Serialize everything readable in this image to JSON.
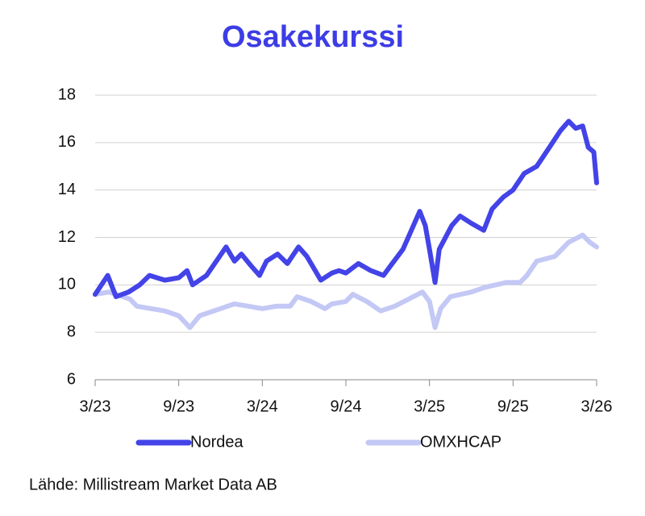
{
  "chart_data": {
    "type": "line",
    "title": "Osakekurssi",
    "source": "Lähde: Millistream Market Data AB",
    "xlim": [
      0,
      36
    ],
    "xticks": [
      {
        "value": 0,
        "label": "3/23"
      },
      {
        "value": 6,
        "label": "9/23"
      },
      {
        "value": 12,
        "label": "3/24"
      },
      {
        "value": 18,
        "label": "9/24"
      },
      {
        "value": 24,
        "label": "3/25"
      },
      {
        "value": 30,
        "label": "9/25"
      },
      {
        "value": 36,
        "label": "3/26"
      }
    ],
    "ylim": [
      6,
      18
    ],
    "yticks": [
      6,
      8,
      10,
      12,
      14,
      16,
      18
    ],
    "grid": true,
    "series": [
      {
        "name": "Nordea",
        "color": "#4343e8",
        "x": [
          0,
          0.9,
          1.5,
          2.4,
          3.2,
          3.9,
          5,
          6,
          6.6,
          7,
          8,
          9.4,
          10,
          10.5,
          11.2,
          11.8,
          12.3,
          13.1,
          13.8,
          14.6,
          15.2,
          16.2,
          17,
          17.5,
          18,
          18.9,
          19.8,
          20.7,
          21.2,
          22.1,
          22.7,
          23.3,
          23.7,
          24,
          24.4,
          24.7,
          25.6,
          26.2,
          27,
          27.9,
          28.5,
          29.3,
          30,
          30.8,
          31.7,
          32.5,
          33.4,
          34,
          34.5,
          35,
          35.4,
          35.8,
          36
        ],
        "values": [
          9.6,
          10.4,
          9.5,
          9.7,
          10.0,
          10.4,
          10.2,
          10.3,
          10.6,
          10.0,
          10.4,
          11.6,
          11.0,
          11.3,
          10.8,
          10.4,
          11.0,
          11.3,
          10.9,
          11.6,
          11.2,
          10.2,
          10.5,
          10.6,
          10.5,
          10.9,
          10.6,
          10.4,
          10.8,
          11.5,
          12.3,
          13.1,
          12.5,
          11.5,
          10.1,
          11.5,
          12.5,
          12.9,
          12.6,
          12.3,
          13.2,
          13.7,
          14.0,
          14.7,
          15.0,
          15.7,
          16.5,
          16.9,
          16.6,
          16.7,
          15.8,
          15.6,
          14.3
        ]
      },
      {
        "name": "OMXHCAP",
        "color": "#c3c8f5",
        "x": [
          0,
          1,
          2.5,
          3,
          5,
          6,
          6.8,
          7.5,
          9,
          10,
          11,
          12,
          13,
          14,
          14.5,
          15.5,
          16.5,
          17,
          18,
          18.5,
          19.5,
          20.5,
          21.5,
          22.5,
          23.5,
          24,
          24.4,
          24.8,
          25.5,
          27,
          28,
          29.5,
          30.5,
          31,
          31.7,
          33,
          34,
          35,
          35.5,
          36
        ],
        "values": [
          9.6,
          9.7,
          9.4,
          9.1,
          8.9,
          8.7,
          8.2,
          8.7,
          9.0,
          9.2,
          9.1,
          9.0,
          9.1,
          9.1,
          9.5,
          9.3,
          9.0,
          9.2,
          9.3,
          9.6,
          9.3,
          8.9,
          9.1,
          9.4,
          9.7,
          9.3,
          8.2,
          9.0,
          9.5,
          9.7,
          9.9,
          10.1,
          10.1,
          10.4,
          11.0,
          11.2,
          11.8,
          12.1,
          11.8,
          11.6
        ]
      }
    ]
  }
}
